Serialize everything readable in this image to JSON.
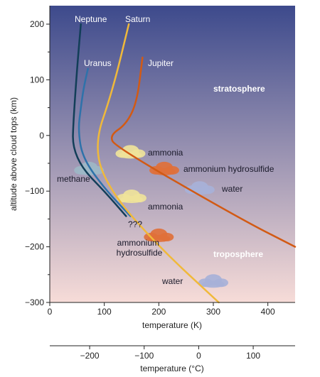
{
  "chart_data": {
    "type": "line",
    "xlabel": "temperature (K)",
    "ylabel": "altitude above cloud tops (km)",
    "xlim": [
      0,
      450
    ],
    "ylim": [
      -300,
      220
    ],
    "x_ticks": [
      "0",
      "100",
      "200",
      "300",
      "400"
    ],
    "y_ticks": [
      "200",
      "100",
      "0",
      "−100",
      "−200",
      "−300"
    ],
    "secondary_x_axis": {
      "label": "temperature (°C)",
      "ticks": [
        "−200",
        "−100",
        "0",
        "100"
      ]
    },
    "background_gradient": [
      "#3d4a8c",
      "#f7dcd8"
    ],
    "series": [
      {
        "name": "Neptune",
        "color": "#123e58",
        "points": [
          [
            57,
            200
          ],
          [
            50,
            120
          ],
          [
            43,
            20
          ],
          [
            42,
            -20
          ],
          [
            60,
            -60
          ],
          [
            100,
            -100
          ],
          [
            140,
            -145
          ]
        ]
      },
      {
        "name": "Uranus",
        "color": "#2e72aa",
        "points": [
          [
            70,
            120
          ],
          [
            62,
            85
          ],
          [
            57,
            50
          ],
          [
            52,
            10
          ],
          [
            60,
            -40
          ],
          [
            100,
            -95
          ],
          [
            148,
            -145
          ]
        ]
      },
      {
        "name": "Saturn",
        "color": "#f0b93a",
        "points": [
          [
            145,
            200
          ],
          [
            115,
            80
          ],
          [
            80,
            -20
          ],
          [
            110,
            -100
          ],
          [
            200,
            -200
          ],
          [
            310,
            -300
          ]
        ]
      },
      {
        "name": "Jupiter",
        "color": "#d25a14",
        "points": [
          [
            170,
            140
          ],
          [
            160,
            60
          ],
          [
            140,
            20
          ],
          [
            110,
            0
          ],
          [
            120,
            -20
          ],
          [
            350,
            -150
          ],
          [
            450,
            -200
          ]
        ]
      }
    ],
    "clouds": [
      {
        "label": "ammonia",
        "x": 148,
        "y": -30,
        "color": "#efe39a"
      },
      {
        "label": "ammonium hydrosulfide",
        "x": 210,
        "y": -60,
        "color": "#e0703a"
      },
      {
        "label": "water",
        "x": 275,
        "y": -95,
        "color": "#a7b1d8"
      },
      {
        "label": "methane",
        "x": 72,
        "y": -60,
        "color": "#9db7c6"
      },
      {
        "label": "ammonia",
        "x": 150,
        "y": -110,
        "color": "#efe39a"
      },
      {
        "label": "ammonium hydrosulfide",
        "x": 200,
        "y": -180,
        "color": "#e0703a"
      },
      {
        "label": "water",
        "x": 300,
        "y": -262,
        "color": "#a7b1d8"
      }
    ],
    "annotations": {
      "stratosphere": "stratosphere",
      "troposphere": "troposphere",
      "unknown": "???"
    }
  }
}
